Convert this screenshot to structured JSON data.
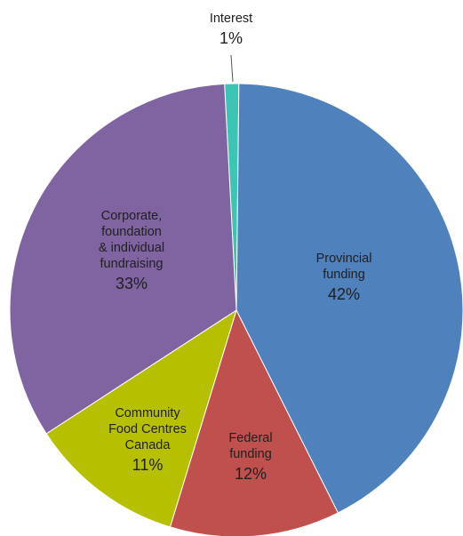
{
  "chart_data": {
    "type": "pie",
    "slices": [
      {
        "label": "Interest",
        "label_lines": [
          "Interest"
        ],
        "value": 1,
        "value_text": "1%",
        "color": "#3cc4b4"
      },
      {
        "label": "Provincial funding",
        "label_lines": [
          "Provincial",
          "funding"
        ],
        "value": 42,
        "value_text": "42%",
        "color": "#4f81bd"
      },
      {
        "label": "Federal funding",
        "label_lines": [
          "Federal",
          "funding"
        ],
        "value": 12,
        "value_text": "12%",
        "color": "#c0504d"
      },
      {
        "label": "Community Food Centres Canada",
        "label_lines": [
          "Community",
          "Food Centres",
          "Canada"
        ],
        "value": 11,
        "value_text": "11%",
        "color": "#b7c000"
      },
      {
        "label": "Corporate, foundation & individual fundraising",
        "label_lines": [
          "Corporate,",
          "foundation",
          "& individual",
          "fundraising"
        ],
        "value": 33,
        "value_text": "33%",
        "color": "#8064a2"
      }
    ],
    "start_angle_deg": -3,
    "direction": "clockwise",
    "legend": "none"
  }
}
